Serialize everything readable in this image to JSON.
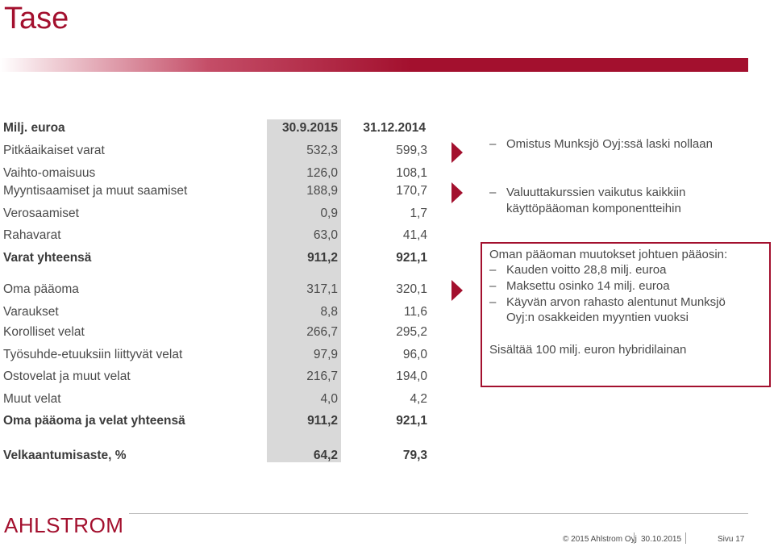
{
  "title": "Tase",
  "table": {
    "header": {
      "label": "Milj. euroa",
      "col1": "30.9.2015",
      "col2": "31.12.2014"
    },
    "rows": [
      {
        "label": "Pitkäaikaiset varat",
        "v1": "532,3",
        "v2": "599,3"
      },
      {
        "label": "Vaihto-omaisuus",
        "v1": "126,0",
        "v2": "108,1"
      },
      {
        "label": "Myyntisaamiset ja muut saamiset",
        "v1": "188,9",
        "v2": "170,7"
      },
      {
        "label": "Verosaamiset",
        "v1": "0,9",
        "v2": "1,7"
      },
      {
        "label": "Rahavarat",
        "v1": "63,0",
        "v2": "41,4"
      },
      {
        "label": "Varat yhteensä",
        "v1": "911,2",
        "v2": "921,1"
      },
      {
        "label": "Oma pääoma",
        "v1": "317,1",
        "v2": "320,1"
      },
      {
        "label": "Varaukset",
        "v1": "8,8",
        "v2": "11,6"
      },
      {
        "label": "Korolliset velat",
        "v1": "266,7",
        "v2": "295,2"
      },
      {
        "label": "Työsuhde-etuuksiin liittyvät velat",
        "v1": "97,9",
        "v2": "96,0"
      },
      {
        "label": "Ostovelat ja muut velat",
        "v1": "216,7",
        "v2": "194,0"
      },
      {
        "label": "Muut velat",
        "v1": "4,0",
        "v2": "4,2"
      },
      {
        "label": "Oma pääoma ja velat yhteensä",
        "v1": "911,2",
        "v2": "921,1"
      },
      {
        "label": "Velkaantumisaste, %",
        "v1": "64,2",
        "v2": "79,3"
      }
    ]
  },
  "bullets": [
    {
      "dash": "–",
      "lines": [
        "Omistus Munksjö Oyj:ssä laski nollaan"
      ]
    },
    {
      "dash": "–",
      "lines": [
        "Valuuttakurssien vaikutus kaikkiin",
        "käyttöpääoman komponentteihin"
      ]
    }
  ],
  "box": {
    "heading": "Oman pääoman muutokset johtuen pääosin:",
    "items": [
      {
        "dash": "–",
        "lines": [
          "Kauden voitto 28,8 milj. euroa"
        ]
      },
      {
        "dash": "–",
        "lines": [
          "Maksettu osinko 14 milj. euroa"
        ]
      },
      {
        "dash": "–",
        "lines": [
          "Käyvän arvon rahasto alentunut Munksjö",
          "Oyj:n osakkeiden myyntien vuoksi"
        ]
      }
    ],
    "note": "Sisältää 100 milj. euron hybridilainan"
  },
  "footer": {
    "logo": "AHLSTROM",
    "copyright": "© 2015 Ahlstrom Oyj",
    "date": "30.10.2015",
    "page": "Sivu 17"
  },
  "colors": {
    "accent": "#a3102e",
    "shade": "#d9d9d9"
  }
}
